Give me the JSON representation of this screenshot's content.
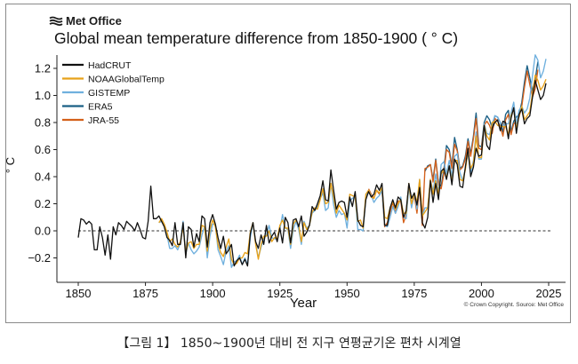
{
  "logo": {
    "text": "Met Office",
    "icon": "met-office-wave-icon"
  },
  "copyright": "© Crown Copyright. Source: Met Office",
  "caption": "【그림 1】 1850~1900년 대비 전 지구 연평균기온 편차 시계열",
  "chart_data": {
    "type": "line",
    "title": "Global mean temperature difference from 1850-1900 ( ° C)",
    "xlabel": "Year",
    "ylabel": "° C",
    "xlim": [
      1850,
      2025
    ],
    "ylim": [
      -0.3,
      1.3
    ],
    "xticks": [
      1850,
      1875,
      1900,
      1925,
      1950,
      1975,
      2000,
      2025
    ],
    "yticks": [
      -0.2,
      0.0,
      0.2,
      0.4,
      0.6,
      0.8,
      1.0,
      1.2
    ],
    "ytick_labels": [
      "−0.2",
      "0.0",
      "0.2",
      "0.4",
      "0.6",
      "0.8",
      "1.0",
      "1.2"
    ],
    "reference_line": {
      "y": 0.0,
      "style": "dashed"
    },
    "legend": {
      "position": "top-left"
    },
    "grid": false,
    "series": [
      {
        "name": "HadCRUT",
        "color": "#111111",
        "start_year": 1850,
        "values": [
          -0.05,
          0.09,
          0.08,
          0.05,
          0.07,
          0.05,
          -0.14,
          -0.14,
          0.03,
          -0.05,
          -0.18,
          -0.03,
          -0.21,
          0.03,
          -0.03,
          0.06,
          0.04,
          0.01,
          0.07,
          0.05,
          0.03,
          0.0,
          0.06,
          0.01,
          -0.05,
          -0.06,
          0.07,
          0.33,
          0.09,
          0.09,
          0.11,
          0.07,
          0.03,
          -0.05,
          -0.07,
          -0.11,
          0.06,
          -0.1,
          -0.1,
          0.06,
          -0.2,
          0.03,
          0.01,
          -0.12,
          -0.02,
          -0.08,
          0.11,
          0.09,
          -0.12,
          0.06,
          0.12,
          0.05,
          -0.05,
          -0.13,
          -0.04,
          -0.17,
          -0.14,
          -0.1,
          -0.26,
          -0.22,
          -0.2,
          -0.25,
          -0.21,
          -0.26,
          -0.02,
          0.06,
          -0.08,
          -0.13,
          -0.03,
          -0.1,
          0.04,
          -0.09,
          -0.04,
          -0.01,
          -0.08,
          0.02,
          -0.09,
          0.1,
          0.06,
          -0.09,
          0.08,
          0.09,
          0.03,
          0.11,
          -0.04,
          -0.01,
          0.04,
          0.18,
          0.15,
          0.2,
          0.26,
          0.37,
          0.23,
          0.22,
          0.45,
          0.3,
          0.16,
          0.21,
          0.22,
          0.21,
          0.1,
          0.25,
          0.18,
          0.29,
          0.08,
          0.04,
          0.03,
          0.23,
          0.29,
          0.25,
          0.27,
          0.34,
          0.3,
          0.35,
          0.04,
          0.04,
          0.17,
          0.23,
          0.17,
          0.25,
          0.23,
          0.1,
          0.15,
          0.35,
          0.24,
          0.28,
          0.19,
          0.32,
          0.06,
          0.02,
          0.1,
          0.37,
          0.21,
          0.35,
          0.23,
          0.44,
          0.46,
          0.38,
          0.48,
          0.34,
          0.53,
          0.49,
          0.33,
          0.32,
          0.47,
          0.61,
          0.4,
          0.47,
          0.61,
          0.55,
          0.56,
          0.78,
          0.63,
          0.6,
          0.76,
          0.8,
          0.82,
          0.74,
          0.81,
          0.8,
          0.68,
          0.83,
          0.91,
          0.72,
          0.86,
          0.9,
          0.79,
          0.83,
          0.85,
          0.99,
          1.11,
          1.04,
          0.97,
          1.0,
          1.09
        ]
      },
      {
        "name": "NOAAGlobalTemp",
        "color": "#e8a21a",
        "start_year": 1880,
        "values": [
          0.06,
          0.09,
          0.05,
          -0.01,
          -0.08,
          -0.06,
          -0.1,
          -0.12,
          -0.08,
          0.03,
          -0.16,
          -0.09,
          -0.08,
          -0.13,
          -0.1,
          -0.1,
          0.04,
          0.03,
          -0.15,
          0.01,
          0.08,
          0.03,
          -0.1,
          -0.16,
          -0.19,
          -0.12,
          -0.06,
          -0.21,
          -0.25,
          -0.24,
          -0.2,
          -0.2,
          -0.16,
          -0.17,
          -0.01,
          0.06,
          -0.1,
          -0.21,
          -0.1,
          -0.04,
          -0.04,
          0.0,
          -0.08,
          -0.05,
          -0.06,
          0.04,
          0.08,
          0.02,
          0.02,
          -0.1,
          0.05,
          0.08,
          0.04,
          -0.08,
          0.06,
          0.01,
          0.04,
          0.14,
          0.17,
          0.16,
          0.23,
          0.31,
          0.2,
          0.21,
          0.35,
          0.25,
          0.13,
          0.19,
          0.16,
          0.13,
          0.08,
          0.27,
          0.26,
          0.25,
          0.07,
          0.08,
          0.02,
          0.27,
          0.3,
          0.25,
          0.24,
          0.3,
          0.28,
          0.32,
          0.1,
          0.09,
          0.17,
          0.22,
          0.16,
          0.2,
          0.23,
          0.13,
          0.13,
          0.35,
          0.2,
          0.28,
          0.21,
          0.38,
          0.11,
          0.14,
          0.17,
          0.38,
          0.27,
          0.37,
          0.27,
          0.42,
          0.45,
          0.39,
          0.48,
          0.36,
          0.52,
          0.52,
          0.38,
          0.37,
          0.45,
          0.59,
          0.46,
          0.5,
          0.7,
          0.54,
          0.54,
          0.78,
          0.7,
          0.67,
          0.8,
          0.81,
          0.78,
          0.77,
          0.77,
          0.77,
          0.71,
          0.85,
          0.9,
          0.75,
          0.85,
          0.92,
          0.82,
          0.85,
          0.88,
          1.02,
          1.15,
          1.11,
          1.04,
          1.07,
          1.12
        ]
      },
      {
        "name": "GISTEMP",
        "color": "#6fb0de",
        "start_year": 1880,
        "values": [
          0.06,
          0.07,
          0.05,
          -0.03,
          -0.13,
          -0.13,
          -0.11,
          -0.14,
          -0.09,
          0.07,
          -0.17,
          -0.09,
          -0.14,
          -0.17,
          -0.15,
          -0.12,
          -0.03,
          0.03,
          -0.2,
          -0.04,
          0.05,
          0.05,
          -0.14,
          -0.19,
          -0.25,
          -0.15,
          -0.11,
          -0.27,
          -0.23,
          -0.22,
          -0.18,
          -0.25,
          -0.2,
          -0.25,
          -0.05,
          0.06,
          -0.09,
          -0.2,
          -0.12,
          -0.06,
          -0.03,
          0.04,
          -0.05,
          -0.06,
          -0.06,
          0.01,
          0.12,
          0.02,
          0.01,
          -0.13,
          0.01,
          0.07,
          0.01,
          -0.1,
          0.07,
          0.02,
          0.04,
          0.13,
          0.15,
          0.18,
          0.24,
          0.28,
          0.15,
          0.17,
          0.35,
          0.19,
          0.1,
          0.15,
          0.12,
          0.13,
          0.02,
          0.22,
          0.24,
          0.25,
          0.01,
          0.01,
          0.0,
          0.25,
          0.3,
          0.26,
          0.21,
          0.24,
          0.26,
          0.3,
          0.04,
          0.03,
          0.1,
          0.18,
          0.13,
          0.18,
          0.25,
          0.1,
          0.09,
          0.33,
          0.17,
          0.28,
          0.16,
          0.38,
          0.11,
          0.17,
          0.17,
          0.38,
          0.29,
          0.42,
          0.28,
          0.49,
          0.51,
          0.42,
          0.52,
          0.4,
          0.55,
          0.57,
          0.43,
          0.37,
          0.46,
          0.58,
          0.42,
          0.52,
          0.73,
          0.53,
          0.53,
          0.79,
          0.72,
          0.71,
          0.79,
          0.85,
          0.84,
          0.8,
          0.77,
          0.79,
          0.79,
          0.87,
          0.95,
          0.79,
          0.89,
          0.92,
          0.87,
          0.9,
          0.98,
          1.15,
          1.3,
          1.26,
          1.13,
          1.18,
          1.27
        ]
      },
      {
        "name": "ERA5",
        "color": "#1a5f85",
        "start_year": 1979,
        "values": [
          0.44,
          0.48,
          0.49,
          0.38,
          0.53,
          0.35,
          0.33,
          0.45,
          0.63,
          0.6,
          0.48,
          0.69,
          0.6,
          0.46,
          0.48,
          0.55,
          0.68,
          0.57,
          0.7,
          0.87,
          0.63,
          0.62,
          0.8,
          0.85,
          0.82,
          0.76,
          0.85,
          0.84,
          0.8,
          0.73,
          0.86,
          0.89,
          0.73,
          0.81,
          0.84,
          0.86,
          0.95,
          1.1,
          1.22,
          1.13,
          1.03,
          1.12,
          1.25
        ]
      },
      {
        "name": "JRA-55",
        "color": "#d4601a",
        "start_year": 1958,
        "values": [
          0.31,
          0.27,
          0.24,
          0.3,
          0.27,
          0.29,
          0.03,
          0.06,
          0.14,
          0.21,
          0.13,
          0.22,
          0.22,
          0.06,
          0.12,
          0.34,
          0.18,
          0.26,
          0.13,
          0.33,
          0.04,
          0.46,
          0.47,
          0.49,
          0.36,
          0.52,
          0.34,
          0.31,
          0.42,
          0.6,
          0.58,
          0.46,
          0.64,
          0.59,
          0.45,
          0.47,
          0.53,
          0.66,
          0.55,
          0.68,
          0.83,
          0.61,
          0.6,
          0.78,
          0.81,
          0.78,
          0.72,
          0.83,
          0.81,
          0.77,
          0.7,
          0.82,
          0.86,
          0.71,
          0.79,
          0.81,
          0.84,
          0.92,
          1.06,
          1.18,
          1.08,
          0.99,
          1.05,
          1.19
        ]
      }
    ]
  }
}
